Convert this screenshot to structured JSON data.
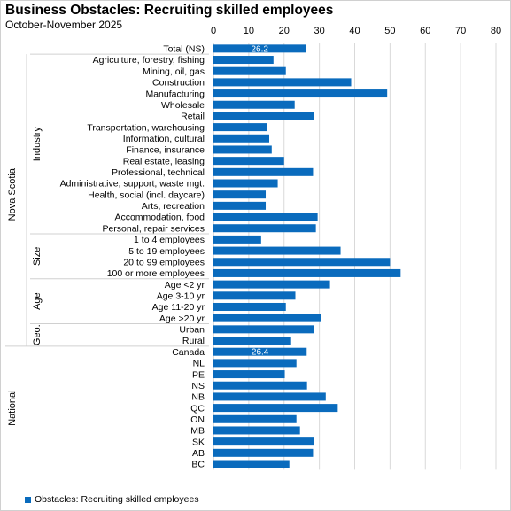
{
  "chart_data": {
    "type": "bar",
    "orientation": "horizontal",
    "title": "Business Obstacles: Recruiting skilled employees",
    "subtitle": "October-November 2025",
    "xlim": [
      0,
      80
    ],
    "xticks": [
      0,
      10,
      20,
      30,
      40,
      50,
      60,
      70,
      80
    ],
    "grid": true,
    "legend_position": "bottom-left",
    "bar_color": "#0a6bbd",
    "series": [
      {
        "name": "Obstacles: Recruiting skilled employees",
        "values": [
          26.2,
          17.0,
          20.5,
          39.0,
          49.2,
          23.0,
          28.5,
          15.2,
          15.8,
          16.5,
          20.0,
          28.2,
          18.2,
          14.8,
          14.8,
          29.5,
          29.0,
          13.5,
          36.0,
          50.0,
          53.0,
          33.0,
          23.2,
          20.5,
          30.5,
          28.5,
          22.0,
          26.4,
          23.5,
          20.2,
          26.5,
          31.8,
          35.2,
          23.5,
          24.5,
          28.5,
          28.2,
          21.5
        ]
      }
    ],
    "categories": [
      "Total (NS)",
      "Agriculture, forestry, fishing",
      "Mining, oil, gas",
      "Construction",
      "Manufacturing",
      "Wholesale",
      "Retail",
      "Transportation, warehousing",
      "Information, cultural",
      "Finance, insurance",
      "Real estate, leasing",
      "Professional, technical",
      "Administrative, support, waste mgt.",
      "Health, social (incl. daycare)",
      "Arts, recreation",
      "Accommodation, food",
      "Personal, repair services",
      "1 to 4 employees",
      "5 to 19 employees",
      "20 to 99 employees",
      "100 or more employees",
      "Age <2 yr",
      "Age 3-10 yr",
      "Age 11-20 yr",
      "Age >20 yr",
      "Urban",
      "Rural",
      "Canada",
      "NL",
      "PE",
      "NS",
      "NB",
      "QC",
      "ON",
      "MB",
      "SK",
      "AB",
      "BC"
    ],
    "data_labels": [
      {
        "category": "Total (NS)",
        "text": "26.2"
      },
      {
        "category": "Canada",
        "text": "26.4"
      }
    ],
    "groups": [
      {
        "label": "Industry",
        "start": 1,
        "end": 16
      },
      {
        "label": "Size",
        "start": 17,
        "end": 20
      },
      {
        "label": "Age",
        "start": 21,
        "end": 24
      },
      {
        "label": "Geo.",
        "start": 25,
        "end": 26
      }
    ],
    "outer_groups": [
      {
        "label": "Nova Scotia",
        "start": 0,
        "end": 26
      },
      {
        "label": "National",
        "start": 27,
        "end": 37
      }
    ]
  }
}
